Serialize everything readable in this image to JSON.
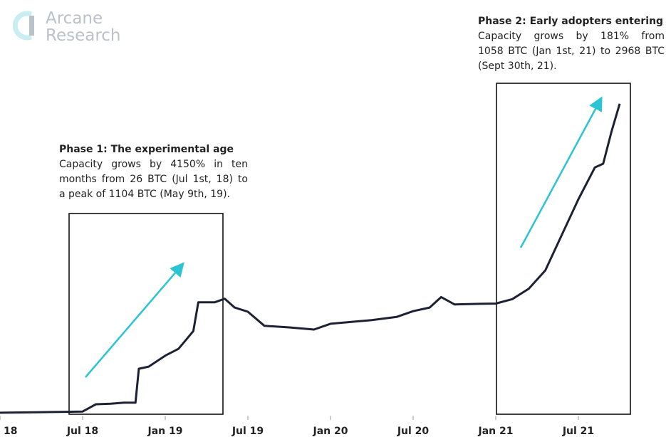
{
  "logo": {
    "line1": "Arcane",
    "line2": "Research"
  },
  "chart_data": {
    "type": "line",
    "x": [
      2018.0,
      2018.25,
      2018.5,
      2018.58,
      2018.67,
      2018.75,
      2018.82,
      2018.84,
      2018.9,
      2019.0,
      2019.08,
      2019.17,
      2019.2,
      2019.3,
      2019.36,
      2019.42,
      2019.5,
      2019.6,
      2019.75,
      2019.9,
      2020.0,
      2020.25,
      2020.4,
      2020.5,
      2020.6,
      2020.67,
      2020.75,
      2020.9,
      2021.0,
      2021.1,
      2021.2,
      2021.3,
      2021.4,
      2021.5,
      2021.6,
      2021.65,
      2021.7,
      2021.75
    ],
    "series": [
      {
        "name": "Capacity",
        "color": "#1c2233",
        "values": [
          14,
          20,
          26,
          95,
          100,
          110,
          110,
          435,
          455,
          560,
          625,
          795,
          1070,
          1070,
          1104,
          1020,
          980,
          845,
          830,
          810,
          865,
          900,
          930,
          985,
          1020,
          1120,
          1050,
          1055,
          1058,
          1100,
          1200,
          1375,
          1715,
          2055,
          2360,
          2395,
          2700,
          2968
        ]
      }
    ],
    "xlim": [
      2018,
      2022
    ],
    "xticks": [
      {
        "value": 2018,
        "label": "Jan 18"
      },
      {
        "value": 2018.5,
        "label": "Jul 18"
      },
      {
        "value": 2019,
        "label": "Jan 19"
      },
      {
        "value": 2019.5,
        "label": "Jul 19"
      },
      {
        "value": 2020,
        "label": "Jan 20"
      },
      {
        "value": 2020.5,
        "label": "Jul 20"
      },
      {
        "value": 2021,
        "label": "Jan 21"
      },
      {
        "value": 2021.5,
        "label": "Jul 21"
      }
    ],
    "ylim": [
      0,
      3300
    ],
    "annotations": [
      {
        "title": "Phase 1: The experimental age",
        "lines": [
          "Capacity grows by 4150% in ten",
          "months from 26 BTC (Jul 1st, 18) to",
          "a peak of 1104 BTC (May 9th, 19)."
        ]
      },
      {
        "title": "Phase 2: Early adopters entering",
        "lines": [
          "Capacity grows by 181% from",
          "1058 BTC (Jan 1st, 21) to 2968 BTC",
          "(Sept 30th, 21)."
        ]
      }
    ]
  }
}
